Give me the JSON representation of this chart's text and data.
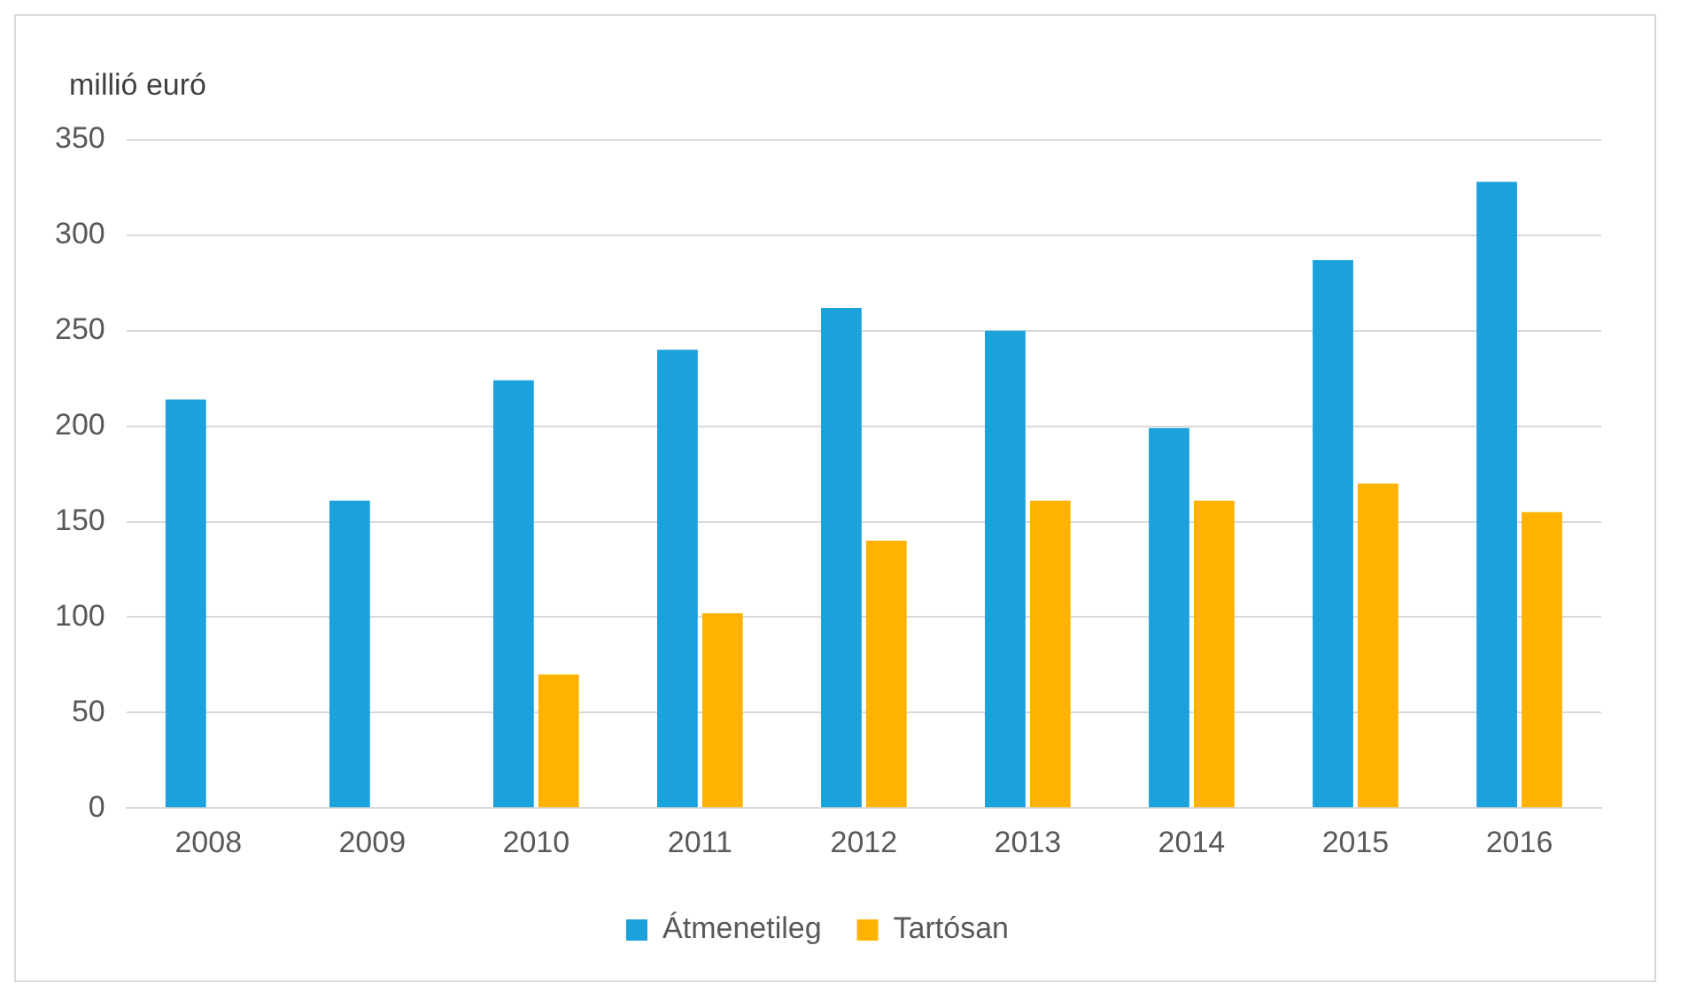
{
  "chart_data": {
    "type": "bar",
    "ylabel": "millió euró",
    "categories": [
      "2008",
      "2009",
      "2010",
      "2011",
      "2012",
      "2013",
      "2014",
      "2015",
      "2016"
    ],
    "series": [
      {
        "name": "Átmenetileg",
        "color": "#1ba1dc",
        "values": [
          214,
          161,
          224,
          240,
          262,
          250,
          199,
          287,
          328
        ]
      },
      {
        "name": "Tartósan",
        "color": "#ffb300",
        "values": [
          null,
          null,
          70,
          102,
          140,
          161,
          161,
          170,
          155
        ]
      }
    ],
    "ylim": [
      0,
      350
    ],
    "yticks": [
      0,
      50,
      100,
      150,
      200,
      250,
      300,
      350
    ],
    "grid": "y",
    "legend": "bottom"
  }
}
